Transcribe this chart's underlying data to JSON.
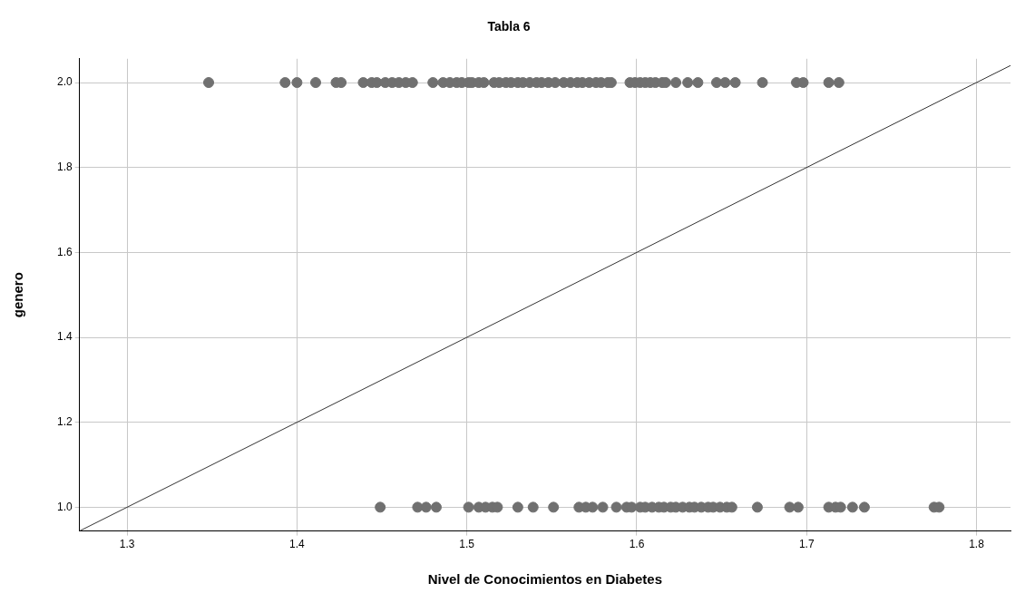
{
  "chart_data": {
    "type": "scatter",
    "title": "Tabla 6",
    "xlabel": "Nivel de Conocimientos en Diabetes",
    "ylabel": "genero",
    "xlim": [
      1.272,
      1.82
    ],
    "ylim": [
      0.944,
      2.056
    ],
    "xticks": [
      1.3,
      1.4,
      1.5,
      1.6,
      1.7,
      1.8
    ],
    "yticks": [
      {
        "value": 1,
        "label": "1.0"
      },
      1.2,
      1.4,
      1.6,
      1.8,
      {
        "value": 2,
        "label": "2.0"
      }
    ],
    "grid": true,
    "legend": false,
    "marker": "circle",
    "series": [
      {
        "color": "#707070",
        "x": [
          1.348,
          1.393,
          1.4,
          1.411,
          1.423,
          1.426,
          1.439,
          1.444,
          1.447,
          1.452,
          1.456,
          1.46,
          1.464,
          1.468,
          1.48,
          1.486,
          1.49,
          1.494,
          1.497,
          1.501,
          1.503,
          1.507,
          1.51,
          1.516,
          1.519,
          1.523,
          1.526,
          1.53,
          1.533,
          1.537,
          1.541,
          1.544,
          1.548,
          1.552,
          1.557,
          1.561,
          1.565,
          1.568,
          1.572,
          1.576,
          1.579,
          1.583,
          1.585,
          1.596,
          1.599,
          1.602,
          1.605,
          1.608,
          1.611,
          1.615,
          1.617,
          1.623,
          1.63,
          1.636,
          1.647,
          1.652,
          1.658,
          1.674,
          1.694,
          1.698,
          1.713,
          1.719
        ],
        "values": [
          2,
          2,
          2,
          2,
          2,
          2,
          2,
          2,
          2,
          2,
          2,
          2,
          2,
          2,
          2,
          2,
          2,
          2,
          2,
          2,
          2,
          2,
          2,
          2,
          2,
          2,
          2,
          2,
          2,
          2,
          2,
          2,
          2,
          2,
          2,
          2,
          2,
          2,
          2,
          2,
          2,
          2,
          2,
          2,
          2,
          2,
          2,
          2,
          2,
          2,
          2,
          2,
          2,
          2,
          2,
          2,
          2,
          2,
          2,
          2,
          2,
          2
        ]
      },
      {
        "color": "#707070",
        "x": [
          1.449,
          1.471,
          1.476,
          1.482,
          1.501,
          1.507,
          1.511,
          1.515,
          1.518,
          1.53,
          1.539,
          1.551,
          1.566,
          1.57,
          1.574,
          1.58,
          1.588,
          1.594,
          1.597,
          1.602,
          1.605,
          1.609,
          1.613,
          1.616,
          1.62,
          1.623,
          1.627,
          1.631,
          1.634,
          1.638,
          1.642,
          1.645,
          1.649,
          1.653,
          1.656,
          1.671,
          1.69,
          1.695,
          1.713,
          1.717,
          1.72,
          1.727,
          1.734,
          1.775,
          1.778
        ],
        "values": [
          1,
          1,
          1,
          1,
          1,
          1,
          1,
          1,
          1,
          1,
          1,
          1,
          1,
          1,
          1,
          1,
          1,
          1,
          1,
          1,
          1,
          1,
          1,
          1,
          1,
          1,
          1,
          1,
          1,
          1,
          1,
          1,
          1,
          1,
          1,
          1,
          1,
          1,
          1,
          1,
          1,
          1,
          1,
          1,
          1
        ]
      },
      {
        "type": "line",
        "color": "#333333",
        "marker": "none",
        "x": [
          1.272,
          1.82
        ],
        "values": [
          0.944,
          2.04
        ]
      }
    ]
  }
}
